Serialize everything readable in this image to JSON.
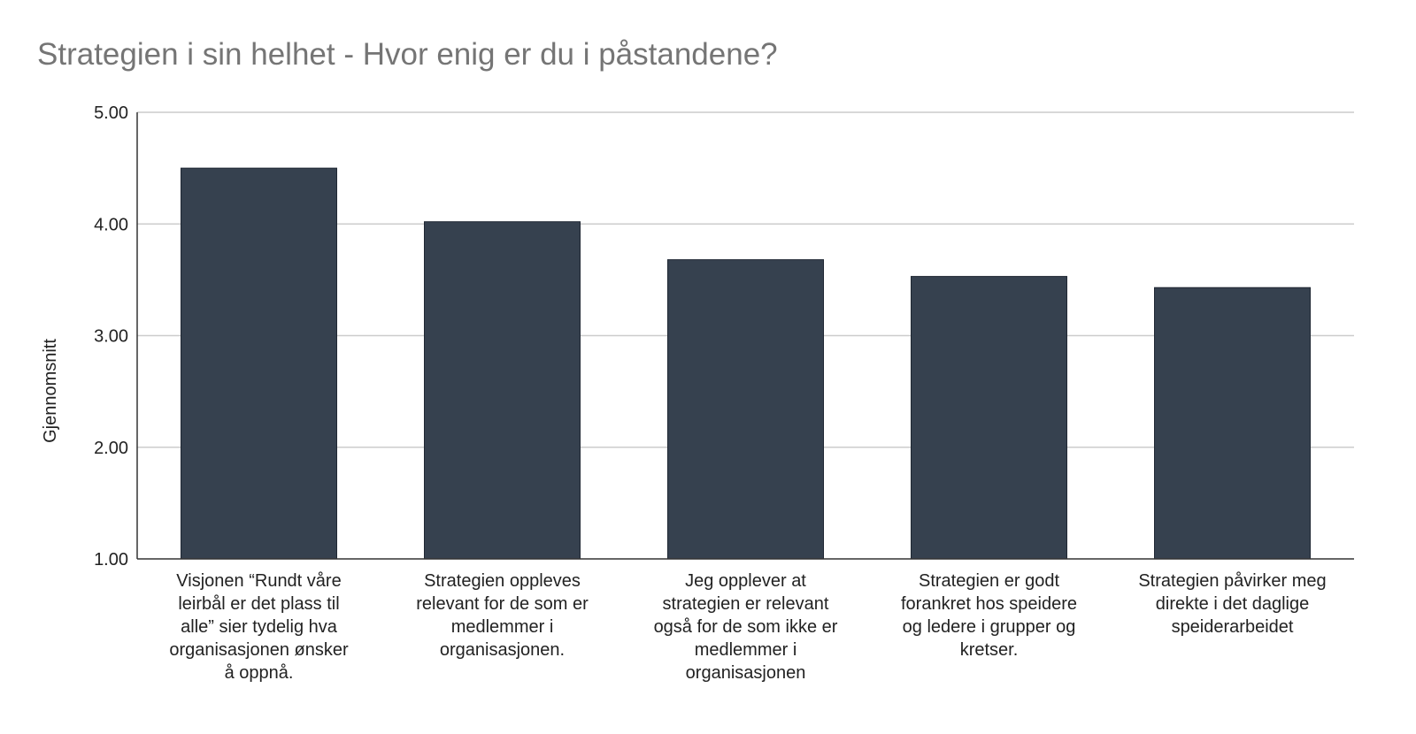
{
  "chart_data": {
    "type": "bar",
    "title": "Strategien i sin helhet - Hvor enig er du i påstandene?",
    "xlabel": "",
    "ylabel": "Gjennomsnitt",
    "ylim": [
      1,
      5
    ],
    "yticks": [
      "1.00",
      "2.00",
      "3.00",
      "4.00",
      "5.00"
    ],
    "categories": [
      [
        "Visjonen “Rundt våre",
        "leirbål er det plass til",
        "alle” sier tydelig hva",
        "organisasjonen ønsker",
        "å oppnå."
      ],
      [
        "Strategien oppleves",
        "relevant for de som er",
        "medlemmer i",
        "organisasjonen."
      ],
      [
        "Jeg opplever at",
        "strategien er relevant",
        "også for de som ikke er",
        "medlemmer i",
        "organisasjonen"
      ],
      [
        "Strategien er godt",
        "forankret hos speidere",
        "og ledere i grupper og",
        "kretser."
      ],
      [
        "Strategien påvirker meg",
        "direkte i det daglige",
        "speiderarbeidet"
      ]
    ],
    "values": [
      4.5,
      4.02,
      3.68,
      3.53,
      3.43
    ],
    "grid": true,
    "legend": "none",
    "bar_color": "#36414f",
    "grid_color": "#cccccc"
  }
}
